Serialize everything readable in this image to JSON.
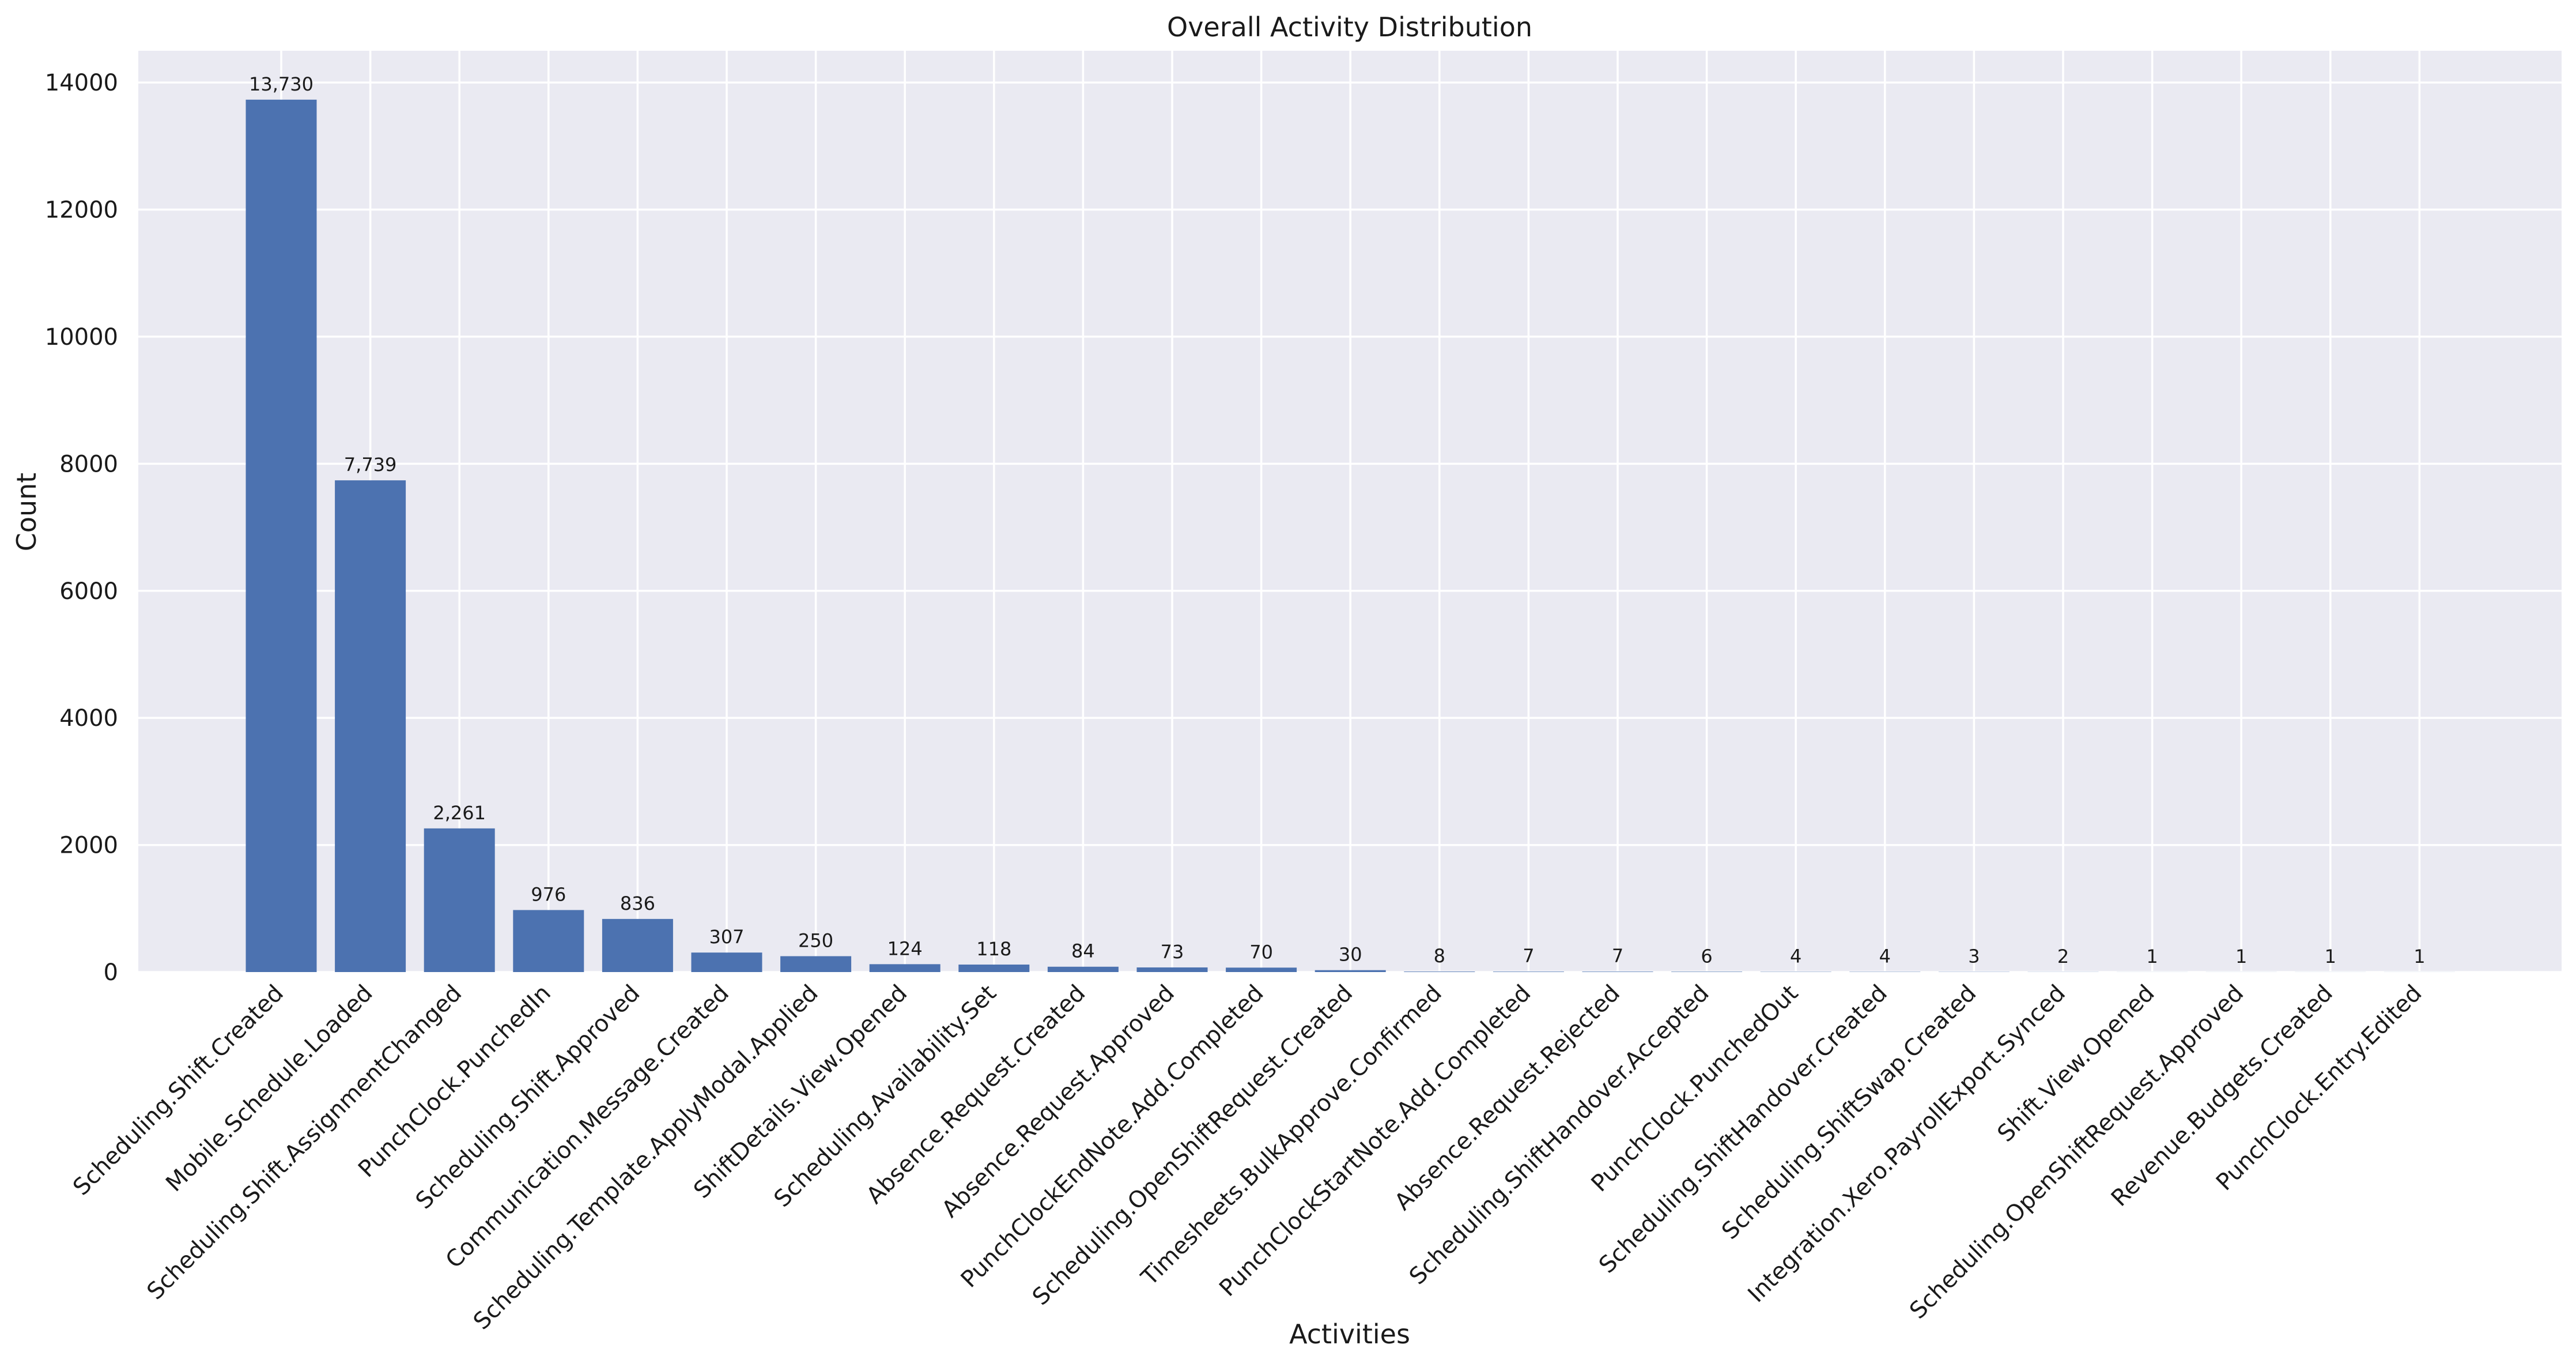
{
  "chart_data": {
    "type": "bar",
    "title": "Overall Activity Distribution",
    "xlabel": "Activities",
    "ylabel": "Count",
    "ylim": [
      0,
      14500
    ],
    "yticks": [
      0,
      2000,
      4000,
      6000,
      8000,
      10000,
      12000,
      14000
    ],
    "grid": true,
    "bar_color": "#4c72b0",
    "background_color": "#eaeaf2",
    "categories": [
      "Scheduling.Shift.Created",
      "Mobile.Schedule.Loaded",
      "Scheduling.Shift.AssignmentChanged",
      "PunchClock.PunchedIn",
      "Scheduling.Shift.Approved",
      "Communication.Message.Created",
      "Scheduling.Template.ApplyModal.Applied",
      "ShiftDetails.View.Opened",
      "Scheduling.Availability.Set",
      "Absence.Request.Created",
      "Absence.Request.Approved",
      "PunchClockEndNote.Add.Completed",
      "Scheduling.OpenShiftRequest.Created",
      "Timesheets.BulkApprove.Confirmed",
      "PunchClockStartNote.Add.Completed",
      "Absence.Request.Rejected",
      "Scheduling.ShiftHandover.Accepted",
      "PunchClock.PunchedOut",
      "Scheduling.ShiftHandover.Created",
      "Scheduling.ShiftSwap.Created",
      "Integration.Xero.PayrollExport.Synced",
      "Shift.View.Opened",
      "Scheduling.OpenShiftRequest.Approved",
      "Revenue.Budgets.Created",
      "PunchClock.Entry.Edited"
    ],
    "values": [
      13730,
      7739,
      2261,
      976,
      836,
      307,
      250,
      124,
      118,
      84,
      73,
      70,
      30,
      8,
      7,
      7,
      6,
      4,
      4,
      3,
      2,
      1,
      1,
      1,
      1
    ],
    "value_labels": [
      "13,730",
      "7,739",
      "2,261",
      "976",
      "836",
      "307",
      "250",
      "124",
      "118",
      "84",
      "73",
      "70",
      "30",
      "8",
      "7",
      "7",
      "6",
      "4",
      "4",
      "3",
      "2",
      "1",
      "1",
      "1",
      "1"
    ]
  }
}
